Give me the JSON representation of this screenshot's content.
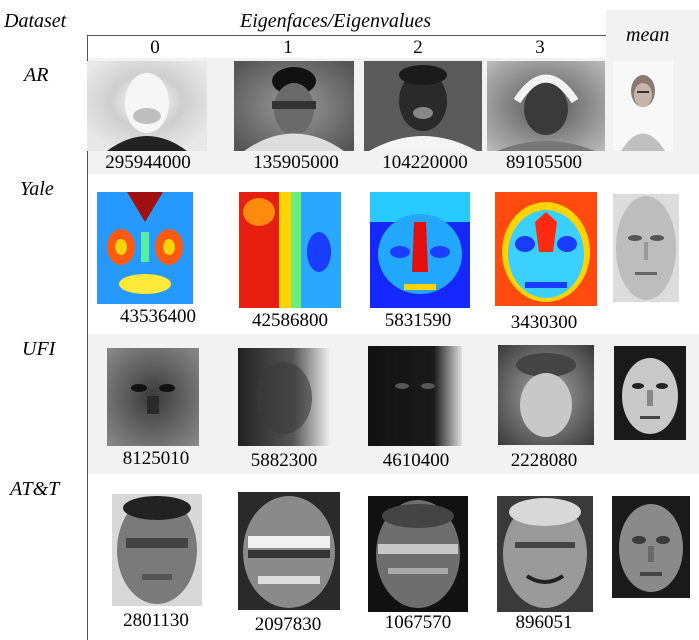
{
  "header": {
    "dataset_label": "Dataset",
    "title": "Eigenfaces/Eigenvalues",
    "columns": [
      "0",
      "1",
      "2",
      "3"
    ],
    "mean_label": "mean"
  },
  "rows": [
    {
      "name": "AR",
      "values": [
        "295944000",
        "135905000",
        "104220000",
        "89105500"
      ]
    },
    {
      "name": "Yale",
      "values": [
        "43536400",
        "42586800",
        "5831590",
        "3430300"
      ]
    },
    {
      "name": "UFI",
      "values": [
        "8125010",
        "5882300",
        "4610400",
        "2228080"
      ]
    },
    {
      "name": "AT&T",
      "values": [
        "2801130",
        "2097830",
        "1067570",
        "896051"
      ]
    }
  ]
}
